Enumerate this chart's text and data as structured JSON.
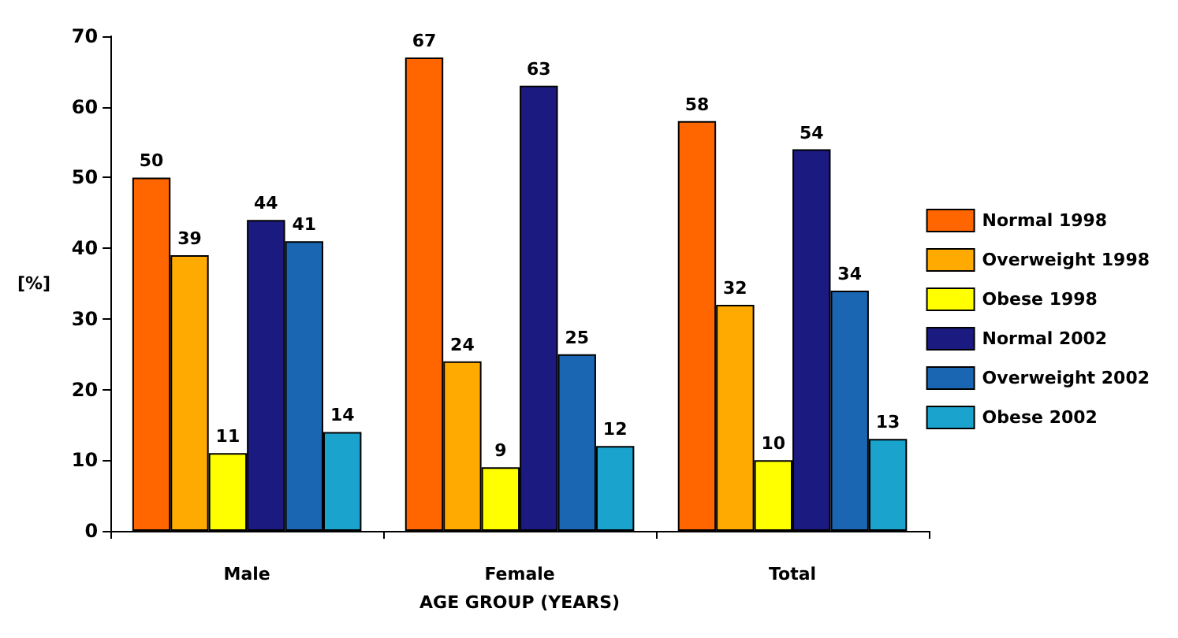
{
  "chart_data": {
    "type": "bar",
    "xlabel": "AGE GROUP (YEARS)",
    "ylabel": "[%]",
    "categories": [
      "Male",
      "Female",
      "Total"
    ],
    "series": [
      {
        "name": "Normal 1998",
        "color": "#ff6600",
        "values": [
          50,
          67,
          58
        ]
      },
      {
        "name": "Overweight 1998",
        "color": "#ffaa00",
        "values": [
          39,
          24,
          32
        ]
      },
      {
        "name": "Obese 1998",
        "color": "#ffff00",
        "values": [
          11,
          9,
          10
        ]
      },
      {
        "name": "Normal 2002",
        "color": "#1a1a80",
        "values": [
          44,
          63,
          54
        ]
      },
      {
        "name": "Overweight 2002",
        "color": "#1a66b3",
        "values": [
          41,
          25,
          34
        ]
      },
      {
        "name": "Obese 2002",
        "color": "#1aa3cc",
        "values": [
          14,
          12,
          13
        ]
      }
    ],
    "ylim": [
      0,
      70
    ],
    "yticks": [
      0,
      10,
      20,
      30,
      40,
      50,
      60,
      70
    ],
    "grid": false,
    "legend": "right",
    "data_labels": true
  }
}
